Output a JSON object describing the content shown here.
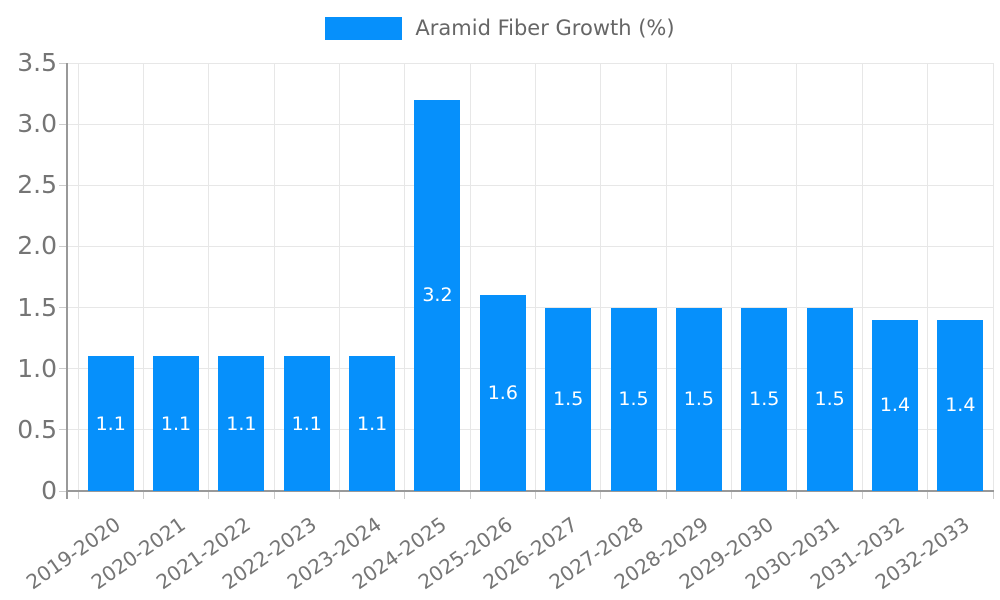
{
  "legend": {
    "label": "Aramid Fiber Growth (%)"
  },
  "colors": {
    "bar": "#0690fb",
    "axis_line": "#999999",
    "grid_line": "#e7e7e7",
    "tick_mark": "#cccccc",
    "axis_label": "#757575",
    "legend_text": "#666666",
    "value_label": "#ffffff",
    "background": "#ffffff"
  },
  "chart_data": {
    "type": "bar",
    "title": "",
    "legend_entries": [
      "Aramid Fiber Growth (%)"
    ],
    "legend_position": "top-center",
    "categories": [
      "2019-2020",
      "2020-2021",
      "2021-2022",
      "2022-2023",
      "2023-2024",
      "2024-2025",
      "2025-2026",
      "2026-2027",
      "2027-2028",
      "2028-2029",
      "2029-2030",
      "2030-2031",
      "2031-2032",
      "2032-2033"
    ],
    "values": [
      1.1,
      1.1,
      1.1,
      1.1,
      1.1,
      3.2,
      1.6,
      1.5,
      1.5,
      1.5,
      1.5,
      1.5,
      1.4,
      1.4
    ],
    "value_labels": [
      "1.1",
      "1.1",
      "1.1",
      "1.1",
      "1.1",
      "3.2",
      "1.6",
      "1.5",
      "1.5",
      "1.5",
      "1.5",
      "1.5",
      "1.4",
      "1.4"
    ],
    "value_label_placement": "center-of-bar",
    "xlabel": "",
    "ylabel": "",
    "ylim": [
      0,
      3.5
    ],
    "yticks": [
      0,
      0.5,
      1,
      1.5,
      2,
      2.5,
      3,
      3.5
    ],
    "ytick_labels": [
      "0",
      "0.5",
      "1.0",
      "1.5",
      "2.0",
      "2.5",
      "3.0",
      "3.5"
    ],
    "xtick_rotation_deg": -35,
    "grid": true
  }
}
